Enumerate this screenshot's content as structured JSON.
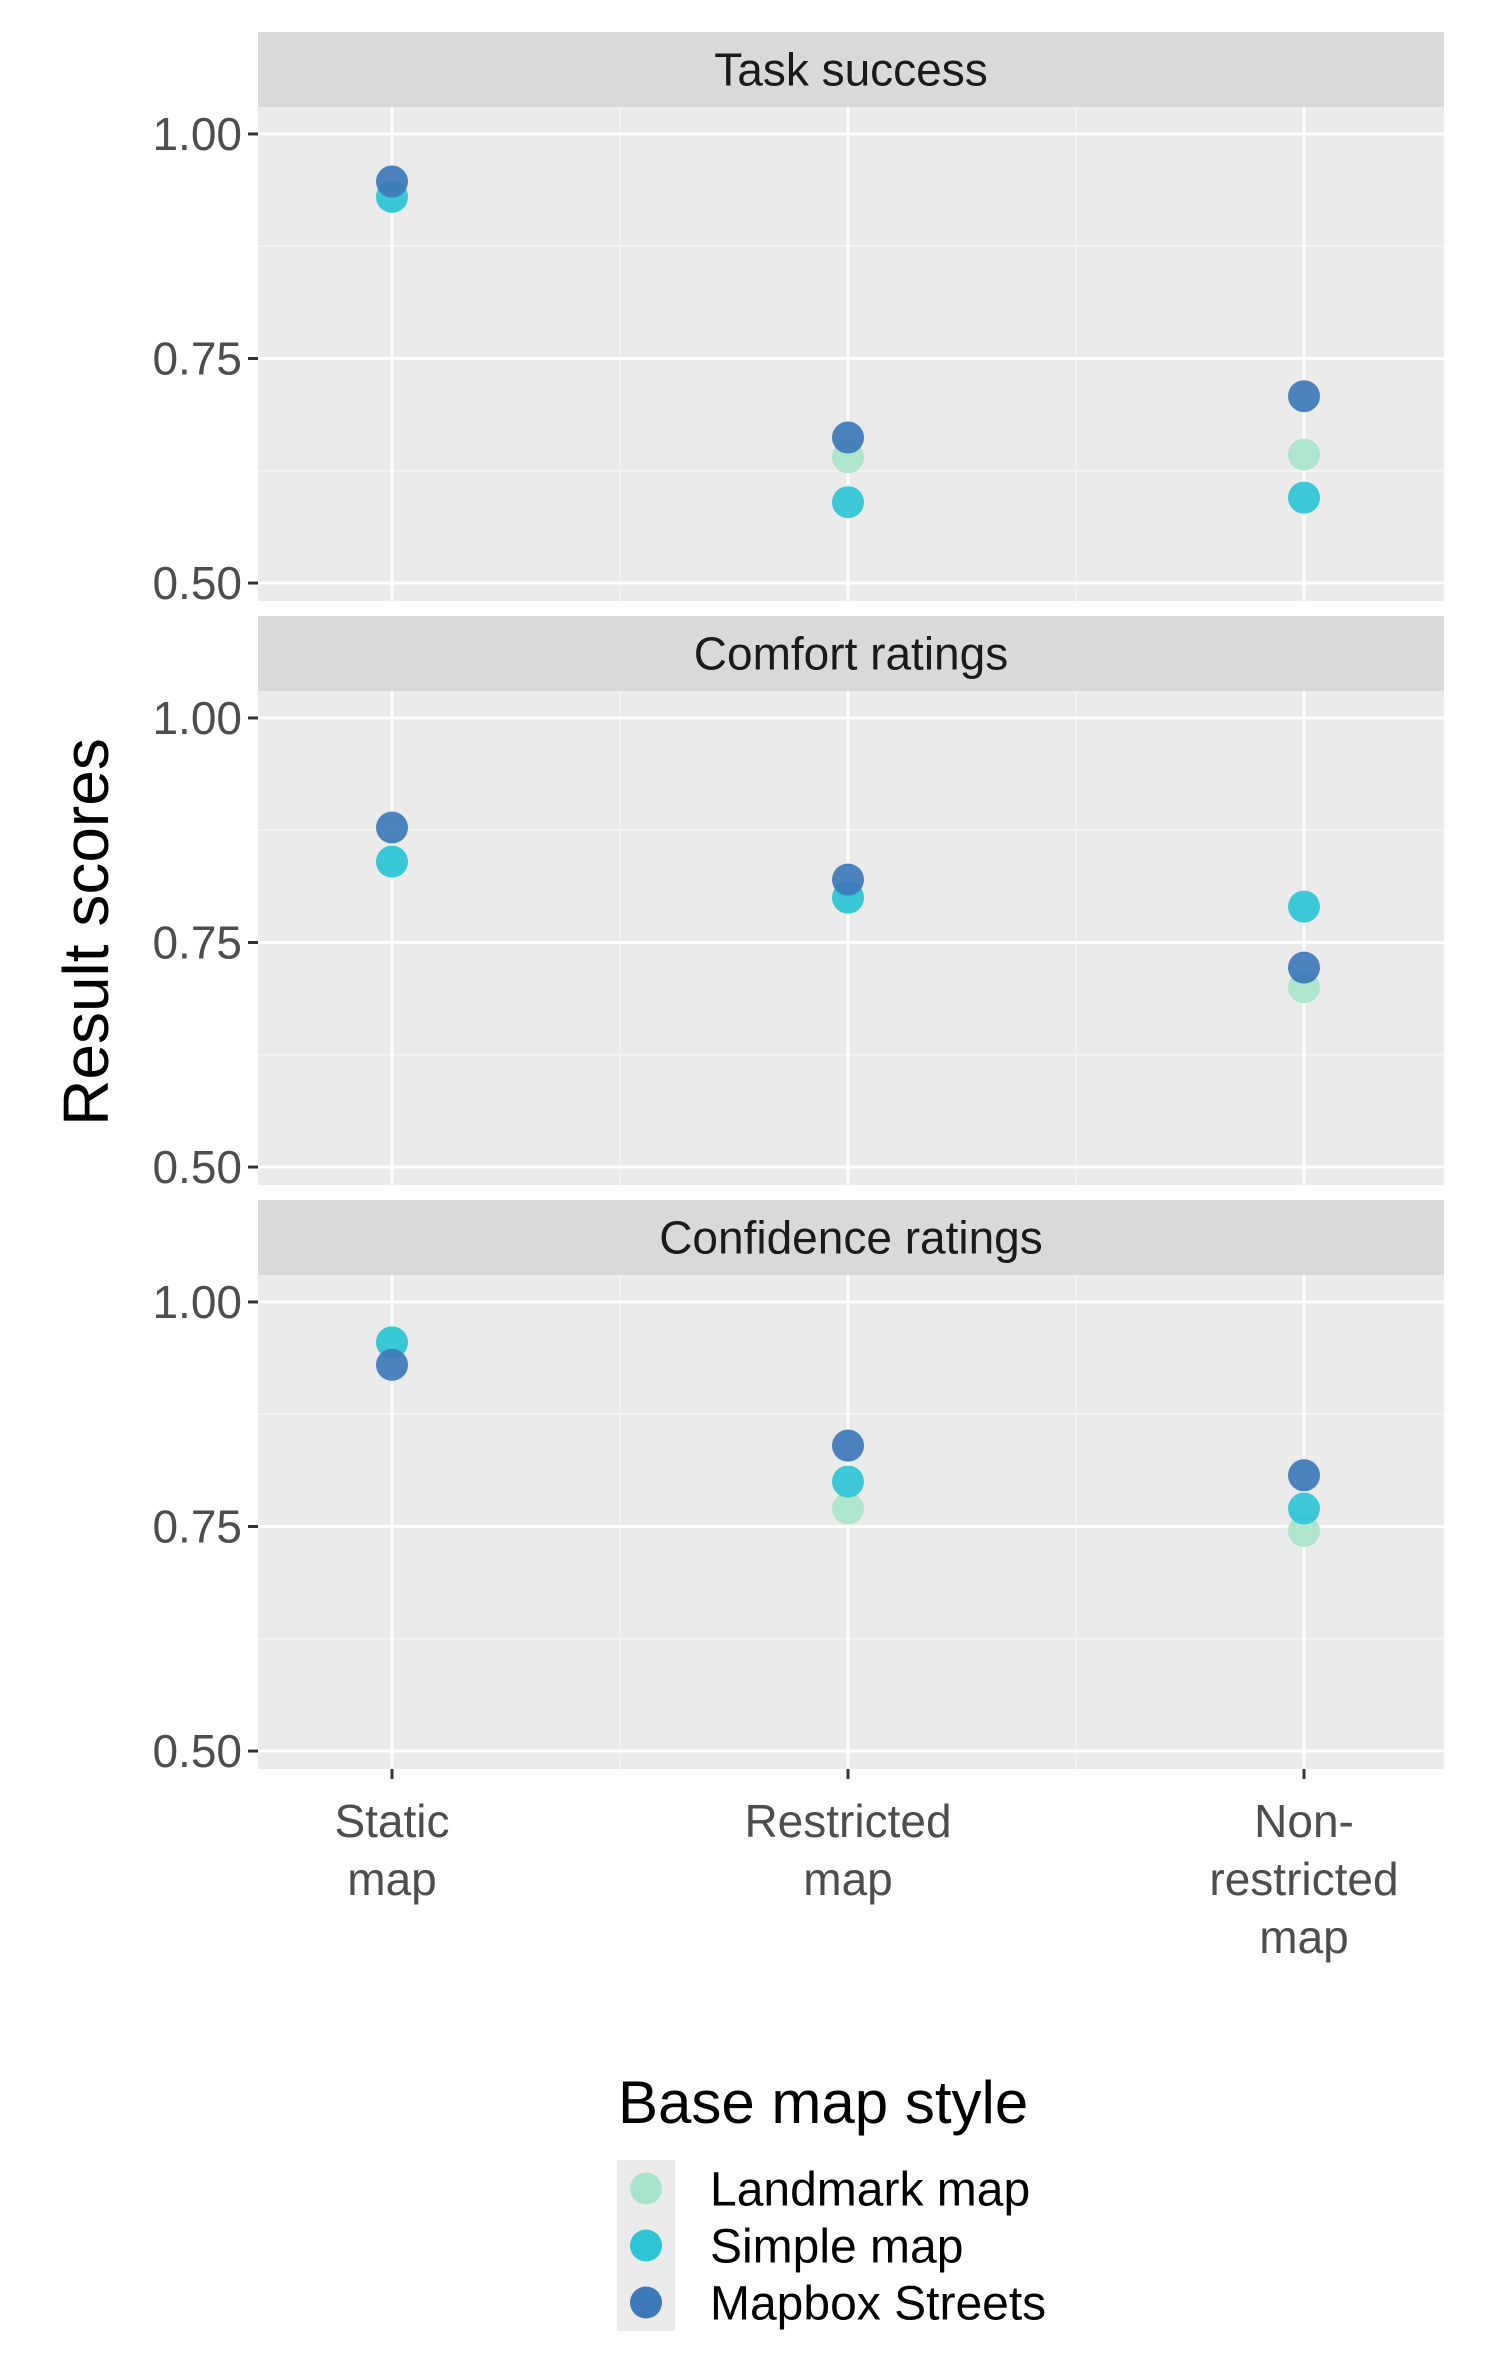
{
  "chart_data": {
    "type": "scatter",
    "ylabel": "Result scores",
    "categories": [
      "Static map",
      "Restricted map",
      "Non-restricted map"
    ],
    "category_tick_lines": [
      [
        "Static",
        "map"
      ],
      [
        "Restricted",
        "map"
      ],
      [
        "Non-",
        "restricted",
        "map"
      ]
    ],
    "ylim": [
      0.48,
      1.03
    ],
    "yticks": [
      0.5,
      0.75,
      1.0
    ],
    "ytick_labels": [
      "0.50",
      "0.75",
      "1.00"
    ],
    "grid": true,
    "legend": {
      "title": "Base map style",
      "position": "bottom",
      "entries": [
        "Landmark map",
        "Simple map",
        "Mapbox Streets"
      ]
    },
    "series_colors": {
      "Landmark map": "#a8e4c9",
      "Simple map": "#2ec4d6",
      "Mapbox Streets": "#3d78b9"
    },
    "panels": [
      {
        "title": "Task success",
        "series": [
          {
            "name": "Landmark map",
            "values": [
              0.93,
              0.64,
              0.643
            ]
          },
          {
            "name": "Simple map",
            "values": [
              0.93,
              0.59,
              0.595
            ]
          },
          {
            "name": "Mapbox Streets",
            "values": [
              0.947,
              0.662,
              0.708
            ]
          }
        ]
      },
      {
        "title": "Comfort ratings",
        "series": [
          {
            "name": "Landmark map",
            "values": [
              0.84,
              0.8,
              0.7
            ]
          },
          {
            "name": "Simple map",
            "values": [
              0.84,
              0.8,
              0.79
            ]
          },
          {
            "name": "Mapbox Streets",
            "values": [
              0.878,
              0.82,
              0.722
            ]
          }
        ]
      },
      {
        "title": "Confidence ratings",
        "series": [
          {
            "name": "Landmark map",
            "values": [
              0.955,
              0.77,
              0.745
            ]
          },
          {
            "name": "Simple map",
            "values": [
              0.955,
              0.8,
              0.77
            ]
          },
          {
            "name": "Mapbox Streets",
            "values": [
              0.93,
              0.84,
              0.807
            ]
          }
        ]
      }
    ]
  }
}
